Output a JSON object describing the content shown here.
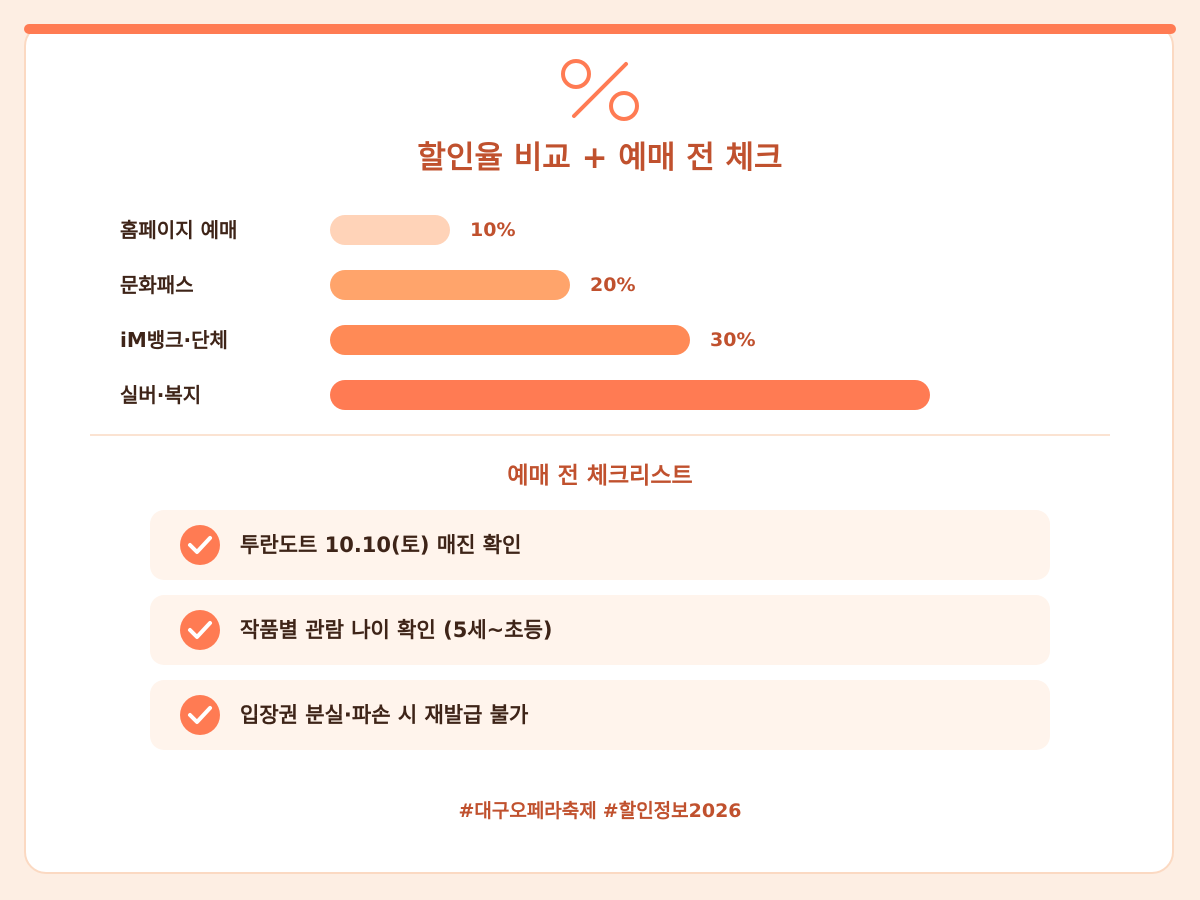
{
  "title": "할인율 비교 + 예매 전 체크",
  "chart_data": {
    "type": "bar",
    "orientation": "horizontal",
    "categories": [
      "홈페이지 예매",
      "문화패스",
      "iM뱅크·단체",
      "실버·복지"
    ],
    "values": [
      10,
      20,
      30,
      50
    ],
    "value_labels": [
      "10%",
      "20%",
      "30%",
      ""
    ],
    "colors": [
      "#ffd3b8",
      "#ffa46b",
      "#ff8a56",
      "#ff7b53"
    ]
  },
  "checklist": {
    "title": "예매 전 체크리스트",
    "items": [
      "투란도트 10.10(토) 매진 확인",
      "작품별 관람 나이 확인 (5세~초등)",
      "입장권 분실·파손 시 재발급 불가"
    ]
  },
  "footer": {
    "hashtag_1": "#대구오페라축제",
    "hashtag_2_a": "#할인정보",
    "hashtag_2_b": "2026"
  },
  "colors": {
    "accent": "#ff7b53",
    "heading": "#c0512e",
    "text": "#3e2418",
    "background": "#fdeee3"
  }
}
